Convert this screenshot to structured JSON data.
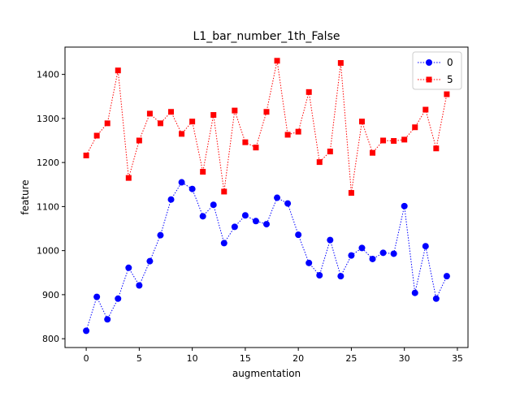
{
  "chart_data": {
    "type": "line",
    "title": "L1_bar_number_1th_False",
    "xlabel": "augmentation",
    "ylabel": "feature",
    "xlim": [
      -2,
      36
    ],
    "ylim": [
      780,
      1462
    ],
    "xticks": [
      0,
      5,
      10,
      15,
      20,
      25,
      30,
      35
    ],
    "yticks": [
      800,
      900,
      1000,
      1100,
      1200,
      1300,
      1400
    ],
    "grid": false,
    "legend_position": "top-right",
    "x": [
      0,
      1,
      2,
      3,
      4,
      5,
      6,
      7,
      8,
      9,
      10,
      11,
      12,
      13,
      14,
      15,
      16,
      17,
      18,
      19,
      20,
      21,
      22,
      23,
      24,
      25,
      26,
      27,
      28,
      29,
      30,
      31,
      32,
      33,
      34
    ],
    "series": [
      {
        "name": "0",
        "color": "#0000ff",
        "marker": "circle",
        "linestyle": "dotted",
        "values": [
          818,
          895,
          844,
          891,
          961,
          921,
          976,
          1035,
          1116,
          1155,
          1140,
          1078,
          1104,
          1017,
          1054,
          1080,
          1067,
          1060,
          1120,
          1107,
          1036,
          972,
          944,
          1024,
          942,
          989,
          1006,
          981,
          995,
          993,
          1101,
          904,
          1010,
          891,
          942
        ]
      },
      {
        "name": "5",
        "color": "#ff0000",
        "marker": "square",
        "linestyle": "dotted",
        "values": [
          1216,
          1261,
          1289,
          1409,
          1165,
          1250,
          1311,
          1289,
          1315,
          1265,
          1293,
          1179,
          1308,
          1134,
          1318,
          1246,
          1234,
          1315,
          1431,
          1263,
          1270,
          1360,
          1201,
          1225,
          1426,
          1131,
          1293,
          1222,
          1250,
          1249,
          1252,
          1280,
          1320,
          1232,
          1355
        ]
      }
    ]
  }
}
